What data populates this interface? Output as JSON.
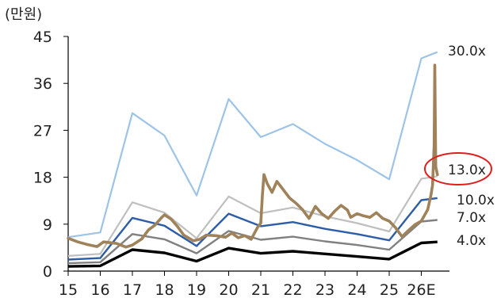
{
  "chart_data": {
    "type": "line",
    "unit_label": "(만원)",
    "ylim": [
      0,
      45
    ],
    "y_ticks": [
      "0",
      "9",
      "18",
      "27",
      "36",
      "45"
    ],
    "x_ticks": [
      "15",
      "16",
      "17",
      "18",
      "19",
      "20",
      "21",
      "22",
      "23",
      "24",
      "25",
      "26E"
    ],
    "x_tick_values": [
      0,
      1,
      2,
      3,
      4,
      5,
      6,
      7,
      8,
      9,
      10,
      11
    ],
    "grid": false,
    "band_series": [
      {
        "name": "30.0x",
        "color": "#9DC3E6",
        "x": [
          0,
          1,
          2,
          3,
          4,
          5,
          6,
          7,
          8,
          9,
          10,
          11,
          11.5
        ],
        "values": [
          6.5,
          7.4,
          30.3,
          26.0,
          14.5,
          33.0,
          25.7,
          28.2,
          24.4,
          21.3,
          17.6,
          40.8,
          42.0
        ]
      },
      {
        "name": "13.0x",
        "color": "#BFBFBF",
        "x": [
          0,
          1,
          2,
          3,
          4,
          5,
          6,
          7,
          8,
          9,
          10,
          11,
          11.5
        ],
        "values": [
          2.9,
          3.3,
          13.2,
          11.2,
          6.3,
          14.3,
          11.1,
          12.2,
          10.5,
          9.2,
          7.6,
          17.7,
          18.2
        ]
      },
      {
        "name": "10.0x",
        "color": "#2E5DA8",
        "x": [
          0,
          1,
          2,
          3,
          4,
          5,
          6,
          7,
          8,
          9,
          10,
          11,
          11.5
        ],
        "values": [
          2.2,
          2.5,
          10.2,
          8.7,
          4.8,
          11.0,
          8.6,
          9.4,
          8.1,
          7.1,
          5.9,
          13.6,
          14.0
        ]
      },
      {
        "name": "7.0x",
        "color": "#808080",
        "x": [
          0,
          1,
          2,
          3,
          4,
          5,
          6,
          7,
          8,
          9,
          10,
          11,
          11.5
        ],
        "values": [
          1.5,
          1.7,
          7.1,
          6.1,
          3.4,
          7.7,
          6.0,
          6.6,
          5.7,
          5.0,
          4.1,
          9.5,
          9.8
        ]
      },
      {
        "name": "4.0x",
        "color": "#000000",
        "x": [
          0,
          1,
          2,
          3,
          4,
          5,
          6,
          7,
          8,
          9,
          10,
          11,
          11.5
        ],
        "values": [
          0.9,
          1.0,
          4.1,
          3.5,
          1.9,
          4.4,
          3.4,
          3.8,
          3.3,
          2.8,
          2.3,
          5.4,
          5.6
        ]
      }
    ],
    "price_series": {
      "color": "#A0825A",
      "x": [
        0,
        0.3,
        0.6,
        0.9,
        1.1,
        1.5,
        1.8,
        2.0,
        2.3,
        2.5,
        2.7,
        2.9,
        3.0,
        3.2,
        3.4,
        3.6,
        3.9,
        4.1,
        4.3,
        4.6,
        4.9,
        5.1,
        5.3,
        5.5,
        5.7,
        5.9,
        6.0,
        6.05,
        6.1,
        6.2,
        6.35,
        6.5,
        6.7,
        6.9,
        7.1,
        7.3,
        7.5,
        7.7,
        7.9,
        8.1,
        8.3,
        8.5,
        8.7,
        8.8,
        9.0,
        9.2,
        9.4,
        9.6,
        9.8,
        10.0,
        10.2,
        10.4,
        10.6,
        10.8,
        11.0,
        11.2,
        11.3,
        11.35,
        11.4,
        11.42,
        11.45,
        11.5
      ],
      "values": [
        6.3,
        5.6,
        5.1,
        4.7,
        5.6,
        5.3,
        4.6,
        5.0,
        6.2,
        7.9,
        8.8,
        10.2,
        10.8,
        10.0,
        8.6,
        6.9,
        5.8,
        6.1,
        6.9,
        6.8,
        6.5,
        7.3,
        6.4,
        6.8,
        6.1,
        8.4,
        9.2,
        14.5,
        18.5,
        16.8,
        15.1,
        17.2,
        15.6,
        14.0,
        13.0,
        11.8,
        10.1,
        12.4,
        11.0,
        10.1,
        11.5,
        12.6,
        11.7,
        10.3,
        11.0,
        10.6,
        10.3,
        11.2,
        10.1,
        9.6,
        8.3,
        6.6,
        7.8,
        8.9,
        9.6,
        11.8,
        14.6,
        16.5,
        24.0,
        39.5,
        20.0,
        18.5
      ]
    },
    "highlight": {
      "target": "13.0x",
      "color": "#E41B1B"
    }
  }
}
